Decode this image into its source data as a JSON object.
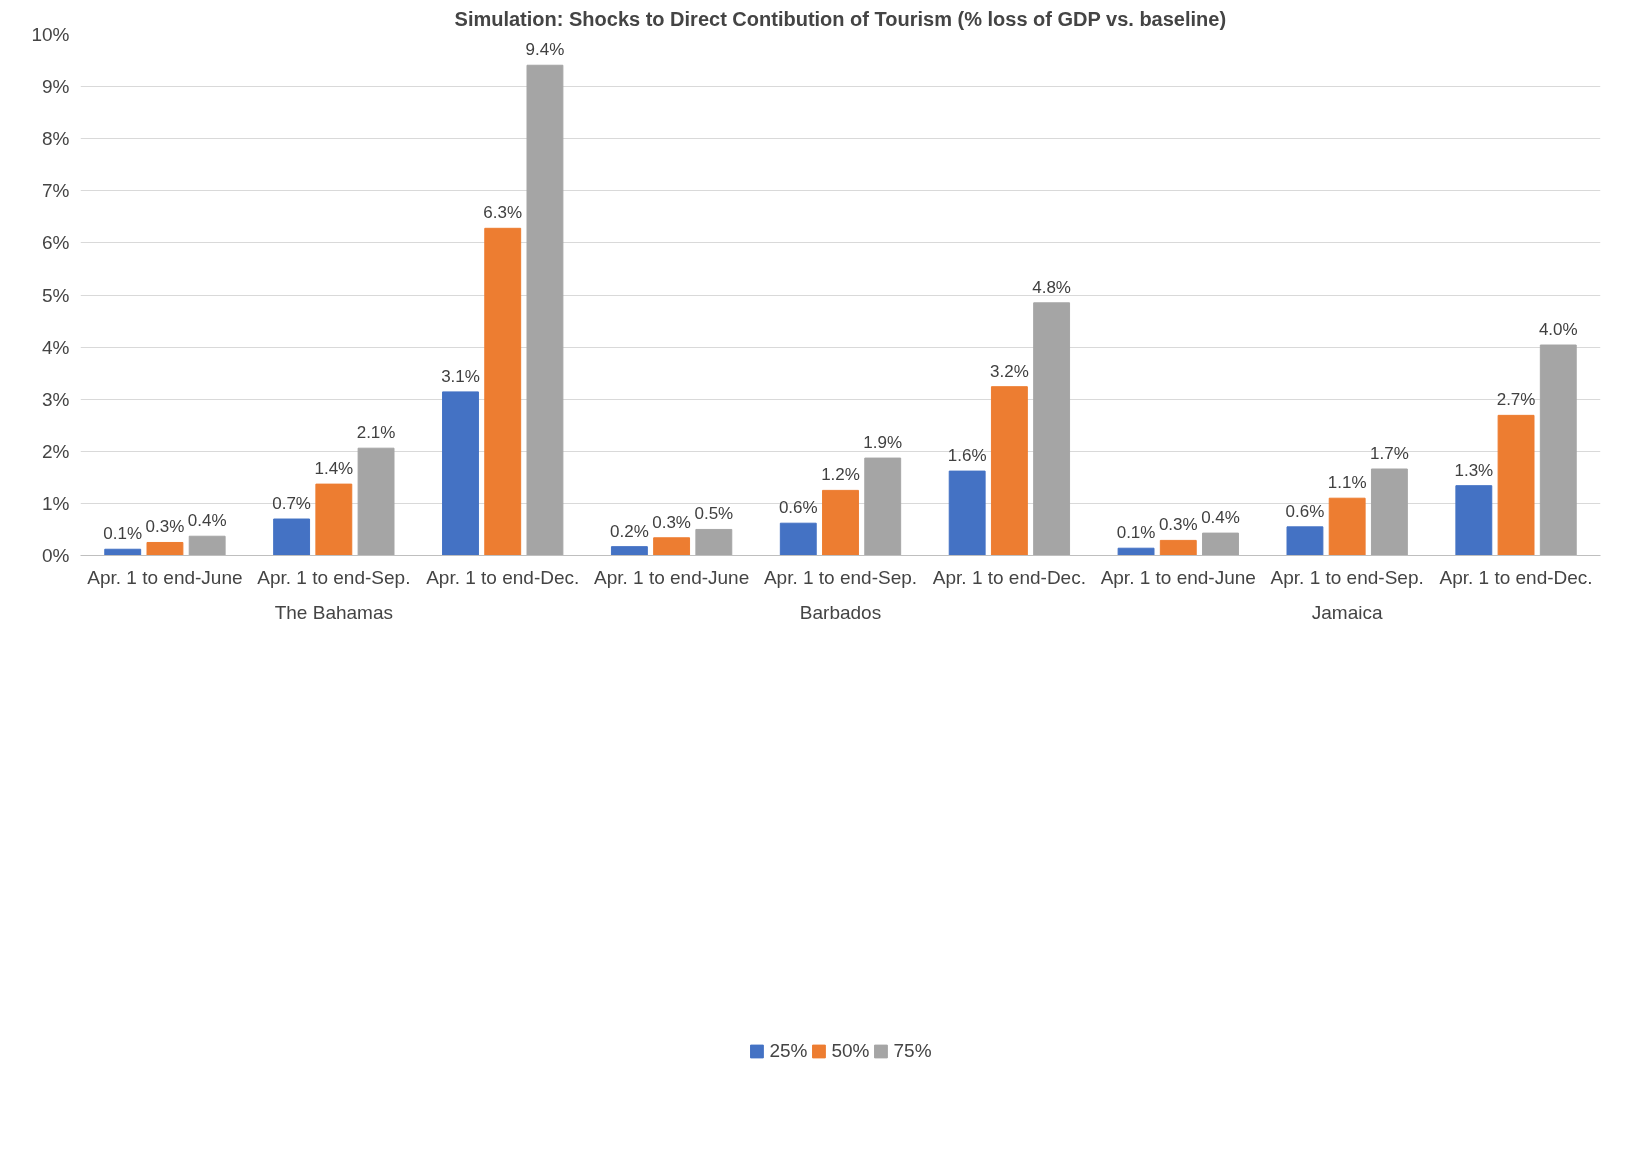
{
  "chart_data": {
    "type": "bar",
    "title": "Simulation: Shocks to Direct Contibution of Tourism (% loss of GDP vs. baseline)",
    "categories": [
      "Apr. 1 to end-June",
      "Apr. 1 to end-Sep.",
      "Apr. 1 to end-Dec.",
      "Apr. 1 to end-June",
      "Apr. 1 to end-Sep.",
      "Apr. 1 to end-Dec.",
      "Apr. 1 to end-June",
      "Apr. 1 to end-Sep.",
      "Apr. 1 to end-Dec."
    ],
    "annotations": [
      "The Bahamas",
      "Barbados",
      "Jamaica"
    ],
    "series": [
      {
        "name": "25%",
        "color": "#4472c4",
        "values": [
          0.12,
          0.7,
          3.14,
          0.17,
          0.62,
          1.62,
          0.14,
          0.55,
          1.34
        ],
        "value_labels": [
          "0.1%",
          "0.7%",
          "3.1%",
          "0.2%",
          "0.6%",
          "1.6%",
          "0.1%",
          "0.6%",
          "1.3%"
        ]
      },
      {
        "name": "50%",
        "color": "#ed7d31",
        "values": [
          0.25,
          1.37,
          6.28,
          0.34,
          1.25,
          3.24,
          0.29,
          1.1,
          2.69
        ],
        "value_labels": [
          "0.3%",
          "1.4%",
          "6.3%",
          "0.3%",
          "1.2%",
          "3.2%",
          "0.3%",
          "1.1%",
          "2.7%"
        ]
      },
      {
        "name": "75%",
        "color": "#a5a5a5",
        "values": [
          0.37,
          2.06,
          9.41,
          0.5,
          1.87,
          4.85,
          0.43,
          1.66,
          4.04
        ],
        "value_labels": [
          "0.4%",
          "2.1%",
          "9.4%",
          "0.5%",
          "1.9%",
          "4.8%",
          "0.4%",
          "1.7%",
          "4.0%"
        ]
      }
    ],
    "ylim": [
      0,
      10
    ],
    "yticks": [
      {
        "value": 0,
        "label": "0%"
      },
      {
        "value": 1,
        "label": "1%"
      },
      {
        "value": 2,
        "label": "2%"
      },
      {
        "value": 3,
        "label": "3%"
      },
      {
        "value": 4,
        "label": "4%"
      },
      {
        "value": 5,
        "label": "5%"
      },
      {
        "value": 6,
        "label": "6%"
      },
      {
        "value": 7,
        "label": "7%"
      },
      {
        "value": 8,
        "label": "8%"
      },
      {
        "value": 9,
        "label": "9%"
      },
      {
        "value": 10,
        "label": "10%"
      }
    ],
    "grid": "y",
    "legend": "bottom"
  }
}
